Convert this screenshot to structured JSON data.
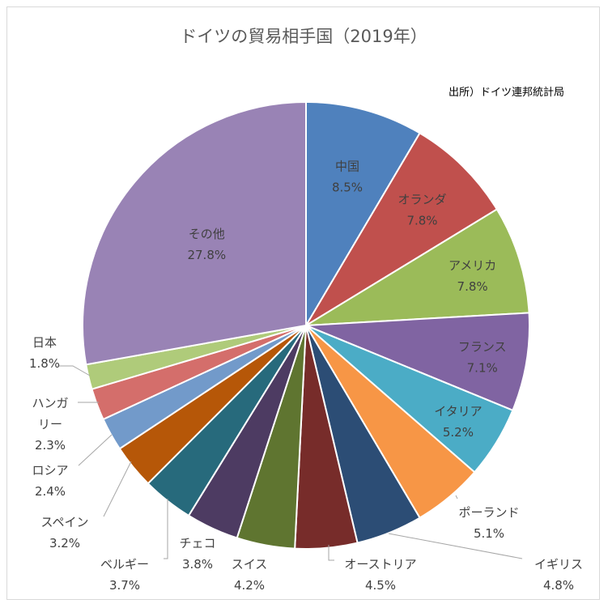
{
  "chart_data": {
    "type": "pie",
    "title": "ドイツの貿易相手国（2019年）",
    "source": "出所）ドイツ連邦統計局",
    "slices": [
      {
        "label": "中国",
        "value": 8.5,
        "value_label": "8.5%",
        "color": "#4f81bd"
      },
      {
        "label": "オランダ",
        "value": 7.8,
        "value_label": "7.8%",
        "color": "#c0504d"
      },
      {
        "label": "アメリカ",
        "value": 7.8,
        "value_label": "7.8%",
        "color": "#9bbb59"
      },
      {
        "label": "フランス",
        "value": 7.1,
        "value_label": "7.1%",
        "color": "#8064a2"
      },
      {
        "label": "イタリア",
        "value": 5.2,
        "value_label": "5.2%",
        "color": "#4bacc6"
      },
      {
        "label": "ポーランド",
        "value": 5.1,
        "value_label": "5.1%",
        "color": "#f79646"
      },
      {
        "label": "イギリス",
        "value": 4.8,
        "value_label": "4.8%",
        "color": "#2c4d75"
      },
      {
        "label": "オーストリア",
        "value": 4.5,
        "value_label": "4.5%",
        "color": "#772c2a"
      },
      {
        "label": "スイス",
        "value": 4.2,
        "value_label": "4.2%",
        "color": "#5f7530"
      },
      {
        "label": "チェコ",
        "value": 3.8,
        "value_label": "3.8%",
        "color": "#4d3b62"
      },
      {
        "label": "ベルギー",
        "value": 3.7,
        "value_label": "3.7%",
        "color": "#276a7c"
      },
      {
        "label": "スペイン",
        "value": 3.2,
        "value_label": "3.2%",
        "color": "#b65708"
      },
      {
        "label": "ロシア",
        "value": 2.4,
        "value_label": "2.4%",
        "color": "#729aca"
      },
      {
        "label": "ハンガリー",
        "label_lines": [
          "ハンガ",
          "リー"
        ],
        "value": 2.3,
        "value_label": "2.3%",
        "color": "#d46e6b"
      },
      {
        "label": "日本",
        "value": 1.8,
        "value_label": "1.8%",
        "color": "#afcb7a"
      },
      {
        "label": "その他",
        "value": 27.8,
        "value_label": "27.8%",
        "color": "#9983b5"
      }
    ]
  }
}
